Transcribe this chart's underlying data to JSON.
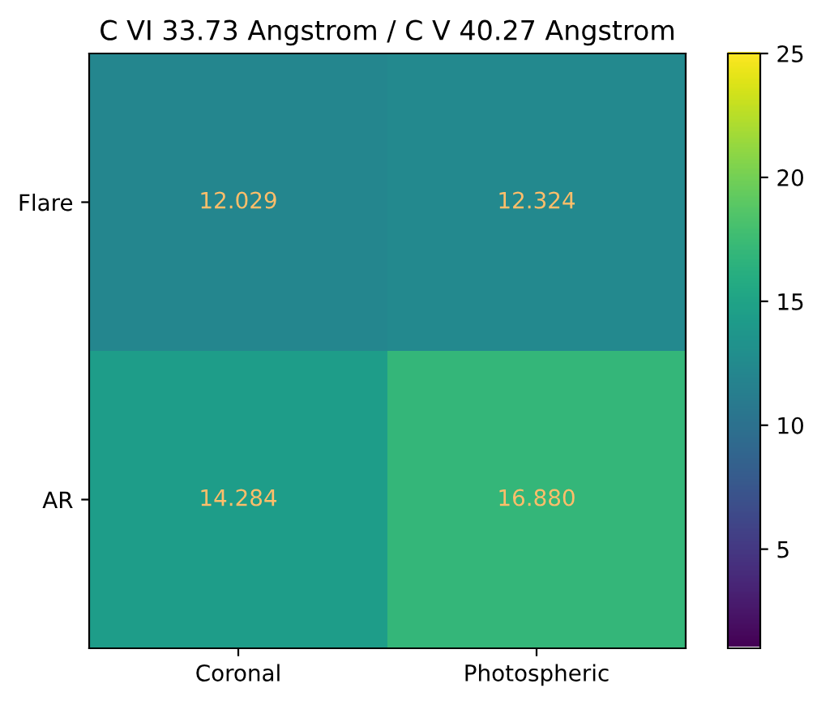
{
  "chart_data": {
    "type": "heatmap",
    "title": "C VI 33.73 Angstrom / C V 40.27 Angstrom",
    "categories": [
      "Coronal",
      "Photospheric"
    ],
    "y_categories": [
      "Flare",
      "AR"
    ],
    "cells": [
      [
        12.029,
        12.324
      ],
      [
        14.284,
        16.88
      ]
    ],
    "cell_labels": [
      [
        "12.029",
        "12.324"
      ],
      [
        "14.284",
        "16.880"
      ]
    ],
    "color": "#ffbe6a",
    "clim": [
      1,
      25
    ],
    "cticks": [
      5,
      10,
      15,
      20,
      25
    ]
  }
}
